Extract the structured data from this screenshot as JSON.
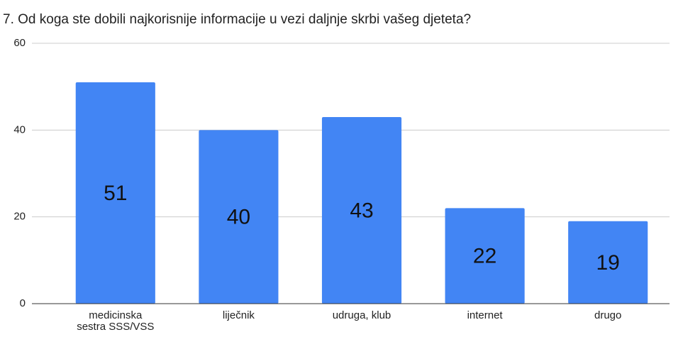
{
  "chart_data": {
    "type": "bar",
    "title": "7. Od koga ste dobili najkorisnije informacije u vezi daljnje skrbi vašeg djeteta?",
    "categories": [
      "medicinska sestra SSS/VSS",
      "liječnik",
      "udruga, klub",
      "internet",
      "drugo"
    ],
    "values": [
      51,
      40,
      43,
      22,
      19
    ],
    "color": "#4285f4",
    "ylim": [
      0,
      60
    ],
    "yticks": [
      0,
      20,
      40,
      60
    ],
    "grid": true
  }
}
